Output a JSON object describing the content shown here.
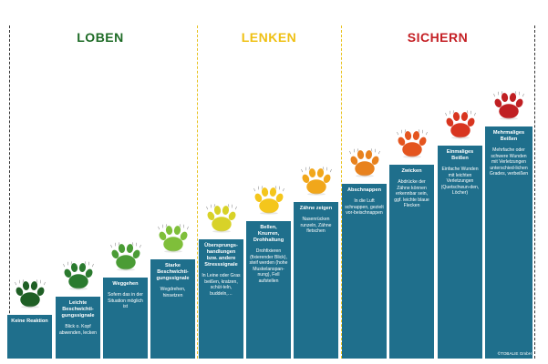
{
  "sections": [
    {
      "title": "LOBEN",
      "color": "#1e6b26"
    },
    {
      "title": "LENKEN",
      "color": "#efc014"
    },
    {
      "title": "SICHERN",
      "color": "#c41f24"
    }
  ],
  "steps": [
    {
      "title": "Keine Reaktion",
      "desc": "",
      "paw_color": "#1f5f25"
    },
    {
      "title": "Leichte Beschwichti-gungssignale",
      "desc": "Blick o. Kopf abwenden, lecken",
      "paw_color": "#2a7a2e"
    },
    {
      "title": "Weggehen",
      "desc": "Sofern das in der Situation möglich ist",
      "paw_color": "#4a9c35"
    },
    {
      "title": "Starke Beschwichti-gungssignale",
      "desc": "Wegdrehen, hinsetzen",
      "paw_color": "#7fbf3a"
    },
    {
      "title": "Übersprungs-handlungen bzw. andere Stresssignale",
      "desc": "In Leine oder Gras beißen, kratzen, schüt-teln, buddeln,…",
      "paw_color": "#d8d228"
    },
    {
      "title": "Bellen, Knurren, Drohhaltung",
      "desc": "Drohfixieren (fixierender Blick), steif werden (hohe Muskelanspan-nung), Fell aufstellen",
      "paw_color": "#f4c61c"
    },
    {
      "title": "Zähne zeigen",
      "desc": "Nasenrücken runzeln, Zähne fletschen",
      "paw_color": "#f1a71b"
    },
    {
      "title": "Abschnappen",
      "desc": "In die Luft schnappen, gezielt vor-beischnappen",
      "paw_color": "#e8821e"
    },
    {
      "title": "Zwicken",
      "desc": "Abdrücke der Zähne können erkennbar sein, ggf. leichte blaue Flecken",
      "paw_color": "#e4551f"
    },
    {
      "title": "Einmaliges Beißen",
      "desc": "Einfache Wunden mit leichten Verletzungen (Quetschwun-den, Löcher)",
      "paw_color": "#d8351f"
    },
    {
      "title": "Mehrmaliges Beißen",
      "desc": "Mehrfache oder schwere Wunden mit Verletzungen unterschied-lichen Grades, verbeißen",
      "paw_color": "#c01f22"
    }
  ],
  "copyright": "©TOBALIE GmbH"
}
